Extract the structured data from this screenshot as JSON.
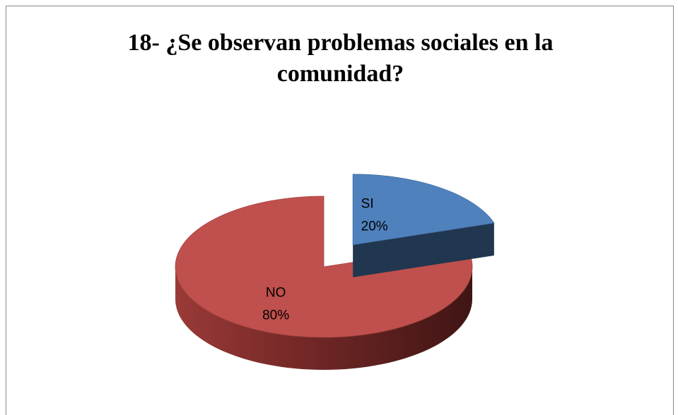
{
  "chart_data": {
    "type": "pie",
    "title_lines": [
      "18- ¿Se observan problemas sociales en la",
      "comunidad?"
    ],
    "slices": [
      {
        "name": "SI",
        "value": 20,
        "label": "20%",
        "color": "#4F81BD",
        "exploded": true
      },
      {
        "name": "NO",
        "value": 80,
        "label": "80%",
        "color": "#C0504D",
        "exploded": false
      }
    ],
    "style": "3d-exploded-pie",
    "legend": "none"
  }
}
